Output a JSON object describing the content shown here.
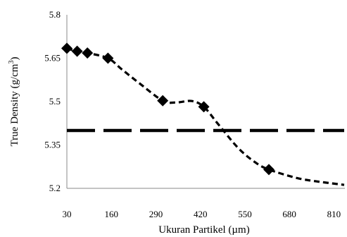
{
  "chart_data": {
    "type": "line",
    "xlabel": "Ukuran Partikel (µm)",
    "ylabel": "True Density (g/cm³)",
    "ylabel_parts": {
      "prefix": "True Density (g/cm",
      "sup": "3",
      "suffix": ")"
    },
    "xlim": [
      30,
      840
    ],
    "ylim": [
      5.2,
      5.8
    ],
    "x_ticks": [
      30,
      160,
      290,
      420,
      550,
      680,
      810
    ],
    "y_ticks": [
      5.2,
      5.35,
      5.5,
      5.65,
      5.8
    ],
    "grid": false,
    "series": [
      {
        "style": "dashed-with-diamond-markers",
        "color": "#000000",
        "points": [
          {
            "x": 30,
            "y": 5.684
          },
          {
            "x": 60,
            "y": 5.674
          },
          {
            "x": 90,
            "y": 5.668
          },
          {
            "x": 150,
            "y": 5.65
          },
          {
            "x": 310,
            "y": 5.503
          },
          {
            "x": 430,
            "y": 5.482
          },
          {
            "x": 620,
            "y": 5.265
          }
        ],
        "curve": [
          [
            30,
            5.684
          ],
          [
            60,
            5.674
          ],
          [
            90,
            5.668
          ],
          [
            150,
            5.65
          ],
          [
            190,
            5.612
          ],
          [
            240,
            5.565
          ],
          [
            310,
            5.503
          ],
          [
            350,
            5.497
          ],
          [
            395,
            5.502
          ],
          [
            430,
            5.482
          ],
          [
            470,
            5.425
          ],
          [
            530,
            5.34
          ],
          [
            580,
            5.29
          ],
          [
            620,
            5.265
          ],
          [
            700,
            5.236
          ],
          [
            760,
            5.224
          ],
          [
            840,
            5.212
          ]
        ]
      },
      {
        "style": "long-dash",
        "color": "#000000",
        "points": [
          {
            "x": 30,
            "y": 5.4
          },
          {
            "x": 840,
            "y": 5.4
          }
        ]
      }
    ]
  }
}
